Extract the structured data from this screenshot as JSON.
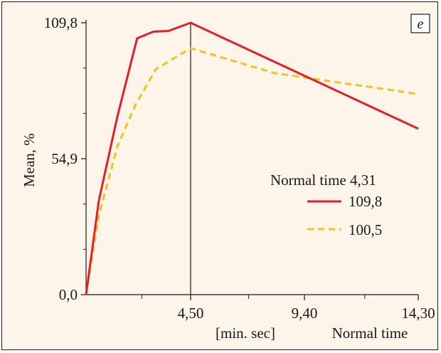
{
  "chart_data": {
    "type": "line",
    "panel_label": "e",
    "ylabel": "Mean, %",
    "xlabel": "[min. sec]",
    "x_extra_label": "Normal time",
    "y_ticks": [
      "109,8",
      "54,9",
      "0,0"
    ],
    "y_tick_values": [
      109.8,
      54.9,
      0.0
    ],
    "x_tick_labels": [
      "4,50",
      "9,40",
      "14,30"
    ],
    "x_tick_values": [
      4.5,
      9.4,
      14.3
    ],
    "xlim": [
      0,
      14.3
    ],
    "ylim": [
      0,
      109.8
    ],
    "minor_x_ticks": [
      2.4,
      7.0,
      12.0
    ],
    "vline_x": 4.5,
    "legend_title": "Normal time 4,31",
    "series": [
      {
        "name": "109,8",
        "color": "#e3202a",
        "dash": "solid",
        "x": [
          0.0,
          0.55,
          1.35,
          2.2,
          2.9,
          3.55,
          4.5,
          14.3
        ],
        "y": [
          0.0,
          38.0,
          72.0,
          103.5,
          106.2,
          106.5,
          109.8,
          67.0
        ]
      },
      {
        "name": "100,5",
        "color": "#f2c21e",
        "dash": "dashed",
        "x": [
          0.0,
          0.55,
          1.35,
          2.15,
          3.0,
          4.5,
          8.1,
          14.3
        ],
        "y": [
          0.0,
          32.0,
          60.0,
          77.0,
          91.0,
          99.5,
          89.5,
          81.0
        ]
      }
    ],
    "grid": false,
    "legend_position": "right"
  }
}
